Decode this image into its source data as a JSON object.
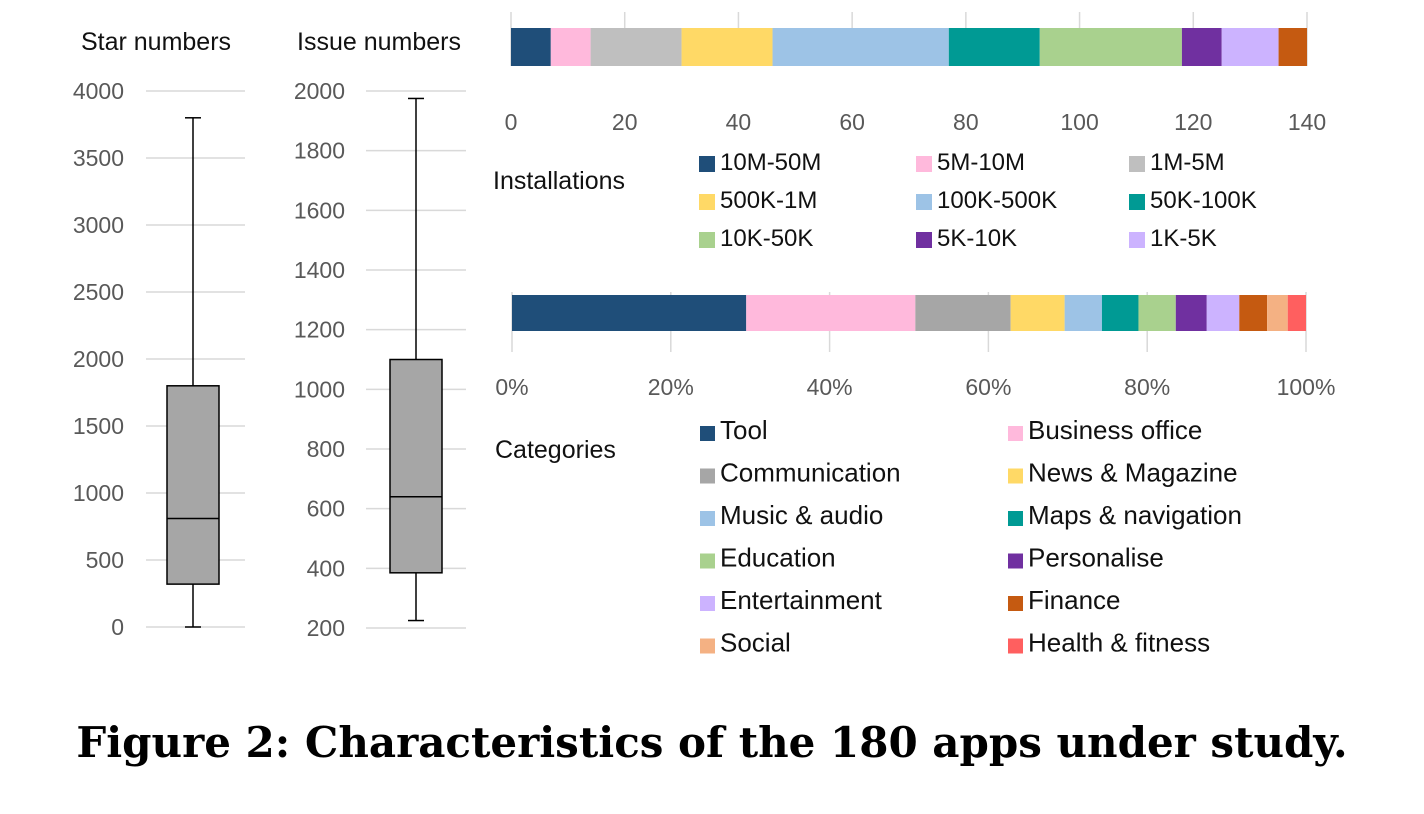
{
  "caption": "Figure 2: Characteristics of the 180 apps under study.",
  "chart_data": [
    {
      "type": "box",
      "label": "Star numbers",
      "ylim": [
        0,
        4000
      ],
      "ticks": [
        "0",
        "500",
        "1000",
        "1500",
        "2000",
        "2500",
        "3000",
        "3500",
        "4000"
      ],
      "box": {
        "min": 0,
        "q1": 320,
        "median": 810,
        "q3": 1800,
        "max": 3800
      },
      "colors": {
        "box": "#a6a6a6",
        "stroke": "#000000"
      }
    },
    {
      "type": "box",
      "label": "Issue numbers",
      "ylim": [
        200,
        2000
      ],
      "ticks": [
        "200",
        "400",
        "600",
        "800",
        "1000",
        "1200",
        "1400",
        "1600",
        "1800",
        "2000"
      ],
      "box": {
        "min": 225,
        "q1": 385,
        "median": 640,
        "q3": 1100,
        "max": 1975
      },
      "colors": {
        "box": "#a6a6a6",
        "stroke": "#000000"
      }
    },
    {
      "type": "bar",
      "stacked": true,
      "orientation": "horizontal",
      "label": "Installations",
      "xlim": [
        0,
        140
      ],
      "ticks": [
        "0",
        "20",
        "40",
        "60",
        "80",
        "100",
        "120",
        "140"
      ],
      "series": [
        {
          "name": "10M-50M",
          "value": 7,
          "color": "#1f4e79"
        },
        {
          "name": "5M-10M",
          "value": 7,
          "color": "#ffb9dc"
        },
        {
          "name": "1M-5M",
          "value": 16,
          "color": "#bfbfbf"
        },
        {
          "name": "500K-1M",
          "value": 16,
          "color": "#ffd966"
        },
        {
          "name": "100K-500K",
          "value": 31,
          "color": "#9dc3e6"
        },
        {
          "name": "50K-100K",
          "value": 16,
          "color": "#009a94"
        },
        {
          "name": "10K-50K",
          "value": 25,
          "color": "#a9d18e"
        },
        {
          "name": "5K-10K",
          "value": 7,
          "color": "#7030a0"
        },
        {
          "name": "1K-5K",
          "value": 10,
          "color": "#ccb3ff"
        },
        {
          "name": "",
          "value": 5,
          "color": "#c55a11"
        }
      ]
    },
    {
      "type": "bar",
      "stacked": true,
      "orientation": "horizontal",
      "label": "Categories",
      "xlim": [
        0,
        100
      ],
      "ticks": [
        "0%",
        "20%",
        "40%",
        "60%",
        "80%",
        "100%"
      ],
      "series": [
        {
          "name": "Tool",
          "value": 29.5,
          "color": "#1f4e79"
        },
        {
          "name": "Business office",
          "value": 21.3,
          "color": "#ffb9dc"
        },
        {
          "name": "Communication",
          "value": 12.0,
          "color": "#a6a6a6"
        },
        {
          "name": "News & Magazine",
          "value": 6.8,
          "color": "#ffd966"
        },
        {
          "name": "Music & audio",
          "value": 4.7,
          "color": "#9dc3e6"
        },
        {
          "name": "Maps & navigation",
          "value": 4.6,
          "color": "#009a94"
        },
        {
          "name": "Education",
          "value": 4.7,
          "color": "#a9d18e"
        },
        {
          "name": "Personalise",
          "value": 3.9,
          "color": "#7030a0"
        },
        {
          "name": "Entertainment",
          "value": 4.1,
          "color": "#ccb3ff"
        },
        {
          "name": "Finance",
          "value": 3.5,
          "color": "#c55a11"
        },
        {
          "name": "Social",
          "value": 2.6,
          "color": "#f4b183"
        },
        {
          "name": "Health & fitness",
          "value": 2.3,
          "color": "#ff5f5f"
        }
      ]
    }
  ]
}
